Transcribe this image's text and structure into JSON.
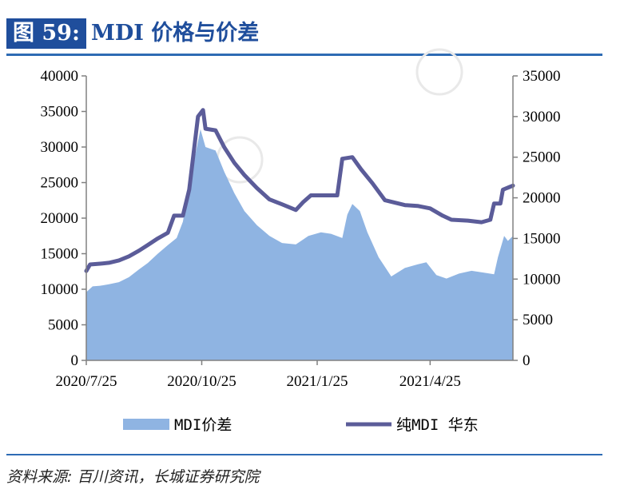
{
  "header": {
    "figure_label": "图 59:",
    "title": "MDI 价格与价差"
  },
  "source": "资料来源: 百川资讯，长城证券研究院",
  "colors": {
    "spread_fill": "#8fb4e2",
    "price_line": "#5b5c99",
    "accent": "#1f4e9c"
  },
  "chart_data": {
    "type": "area+line",
    "x_ticks": [
      "2020/7/25",
      "2020/10/25",
      "2021/1/25",
      "2021/4/25"
    ],
    "x_range": [
      "2020-07-25",
      "2021-06-30"
    ],
    "left_axis": {
      "ticks": [
        "0",
        "5000",
        "10000",
        "15000",
        "20000",
        "25000",
        "30000",
        "35000",
        "40000"
      ],
      "ylim": [
        0,
        40000
      ]
    },
    "right_axis": {
      "ticks": [
        "0",
        "5000",
        "10000",
        "15000",
        "20000",
        "25000",
        "30000",
        "35000"
      ],
      "ylim": [
        0,
        35000
      ]
    },
    "legend_position": "bottom",
    "series": [
      {
        "name": "MDI价差",
        "type": "area",
        "axis": "left",
        "points": [
          [
            "2020-07-25",
            9600
          ],
          [
            "2020-07-30",
            10400
          ],
          [
            "2020-08-05",
            10500
          ],
          [
            "2020-08-12",
            10700
          ],
          [
            "2020-08-20",
            11000
          ],
          [
            "2020-08-28",
            11700
          ],
          [
            "2020-09-05",
            12800
          ],
          [
            "2020-09-12",
            13700
          ],
          [
            "2020-09-20",
            15000
          ],
          [
            "2020-09-28",
            16200
          ],
          [
            "2020-10-05",
            17200
          ],
          [
            "2020-10-10",
            19500
          ],
          [
            "2020-10-15",
            24500
          ],
          [
            "2020-10-20",
            29000
          ],
          [
            "2020-10-24",
            32500
          ],
          [
            "2020-10-28",
            30000
          ],
          [
            "2020-11-05",
            29500
          ],
          [
            "2020-11-12",
            26500
          ],
          [
            "2020-11-20",
            23500
          ],
          [
            "2020-11-28",
            21000
          ],
          [
            "2020-12-08",
            19000
          ],
          [
            "2020-12-18",
            17500
          ],
          [
            "2020-12-28",
            16500
          ],
          [
            "2021-01-08",
            16300
          ],
          [
            "2021-01-18",
            17500
          ],
          [
            "2021-01-28",
            18000
          ],
          [
            "2021-02-05",
            17800
          ],
          [
            "2021-02-14",
            17200
          ],
          [
            "2021-02-18",
            20500
          ],
          [
            "2021-02-22",
            22000
          ],
          [
            "2021-02-28",
            21000
          ],
          [
            "2021-03-06",
            18000
          ],
          [
            "2021-03-15",
            14500
          ],
          [
            "2021-03-25",
            11800
          ],
          [
            "2021-04-05",
            13000
          ],
          [
            "2021-04-15",
            13500
          ],
          [
            "2021-04-22",
            13800
          ],
          [
            "2021-04-30",
            12000
          ],
          [
            "2021-05-08",
            11500
          ],
          [
            "2021-05-18",
            12200
          ],
          [
            "2021-05-28",
            12600
          ],
          [
            "2021-06-08",
            12300
          ],
          [
            "2021-06-15",
            12100
          ],
          [
            "2021-06-18",
            14500
          ],
          [
            "2021-06-23",
            17500
          ],
          [
            "2021-06-26",
            16800
          ],
          [
            "2021-06-30",
            17500
          ]
        ]
      },
      {
        "name": "纯MDI 华东",
        "type": "line",
        "axis": "right",
        "points": [
          [
            "2020-07-25",
            11000
          ],
          [
            "2020-07-28",
            11800
          ],
          [
            "2020-08-05",
            11900
          ],
          [
            "2020-08-12",
            12000
          ],
          [
            "2020-08-20",
            12300
          ],
          [
            "2020-08-28",
            12800
          ],
          [
            "2020-09-05",
            13500
          ],
          [
            "2020-09-12",
            14200
          ],
          [
            "2020-09-20",
            15000
          ],
          [
            "2020-09-28",
            15700
          ],
          [
            "2020-10-03",
            17800
          ],
          [
            "2020-10-10",
            17800
          ],
          [
            "2020-10-15",
            21000
          ],
          [
            "2020-10-22",
            30000
          ],
          [
            "2020-10-26",
            30800
          ],
          [
            "2020-10-28",
            28500
          ],
          [
            "2020-11-05",
            28300
          ],
          [
            "2020-11-12",
            26200
          ],
          [
            "2020-11-20",
            24300
          ],
          [
            "2020-11-28",
            22800
          ],
          [
            "2020-12-08",
            21200
          ],
          [
            "2020-12-18",
            19800
          ],
          [
            "2020-12-28",
            19200
          ],
          [
            "2021-01-08",
            18500
          ],
          [
            "2021-01-14",
            19500
          ],
          [
            "2021-01-20",
            20300
          ],
          [
            "2021-02-10",
            20300
          ],
          [
            "2021-02-14",
            24800
          ],
          [
            "2021-02-22",
            25000
          ],
          [
            "2021-03-01",
            23500
          ],
          [
            "2021-03-10",
            21800
          ],
          [
            "2021-03-20",
            19700
          ],
          [
            "2021-04-05",
            19100
          ],
          [
            "2021-04-15",
            19000
          ],
          [
            "2021-04-25",
            18700
          ],
          [
            "2021-05-05",
            17800
          ],
          [
            "2021-05-12",
            17300
          ],
          [
            "2021-05-25",
            17200
          ],
          [
            "2021-06-05",
            17000
          ],
          [
            "2021-06-12",
            17300
          ],
          [
            "2021-06-15",
            19300
          ],
          [
            "2021-06-20",
            19300
          ],
          [
            "2021-06-22",
            21000
          ],
          [
            "2021-06-30",
            21500
          ]
        ]
      }
    ]
  }
}
